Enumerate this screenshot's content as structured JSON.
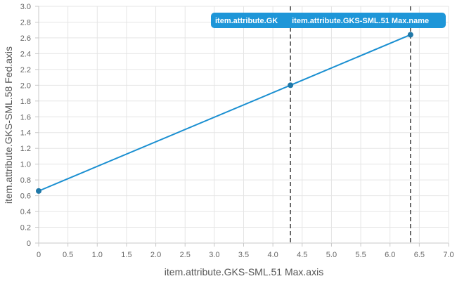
{
  "chart_data": {
    "type": "line",
    "xlabel": "item.attribute.GKS-SML.51 Max.axis",
    "ylabel": "item.attribute.GKS-SML.58 Fed.axis",
    "xlim": [
      0,
      7
    ],
    "ylim": [
      0,
      3
    ],
    "xticks": [
      "0",
      "0.5",
      "1.0",
      "1.5",
      "2.0",
      "2.5",
      "3.0",
      "3.5",
      "4.0",
      "4.5",
      "5.0",
      "5.5",
      "6.0",
      "6.5",
      "7.0"
    ],
    "yticks": [
      "0",
      "0.2",
      "0.4",
      "0.6",
      "0.8",
      "1.0",
      "1.2",
      "1.4",
      "1.6",
      "1.8",
      "2.0",
      "2.2",
      "2.4",
      "2.6",
      "2.8",
      "3.0"
    ],
    "grid": true,
    "series": [
      {
        "x": [
          0,
          4.3,
          6.35
        ],
        "y": [
          0.66,
          2.0,
          2.64
        ]
      }
    ],
    "vlines": [
      4.3,
      6.35
    ],
    "badges": [
      "item.attribute.GK",
      "item.attribute.GKS-SML.51 Max.name"
    ]
  },
  "colors": {
    "line": "#1a8fd1",
    "point": "#1f78a8",
    "grid": "#e5e5e5",
    "axis": "#c8c8c8",
    "vline": "#444444",
    "badge": "#1e96d8"
  }
}
